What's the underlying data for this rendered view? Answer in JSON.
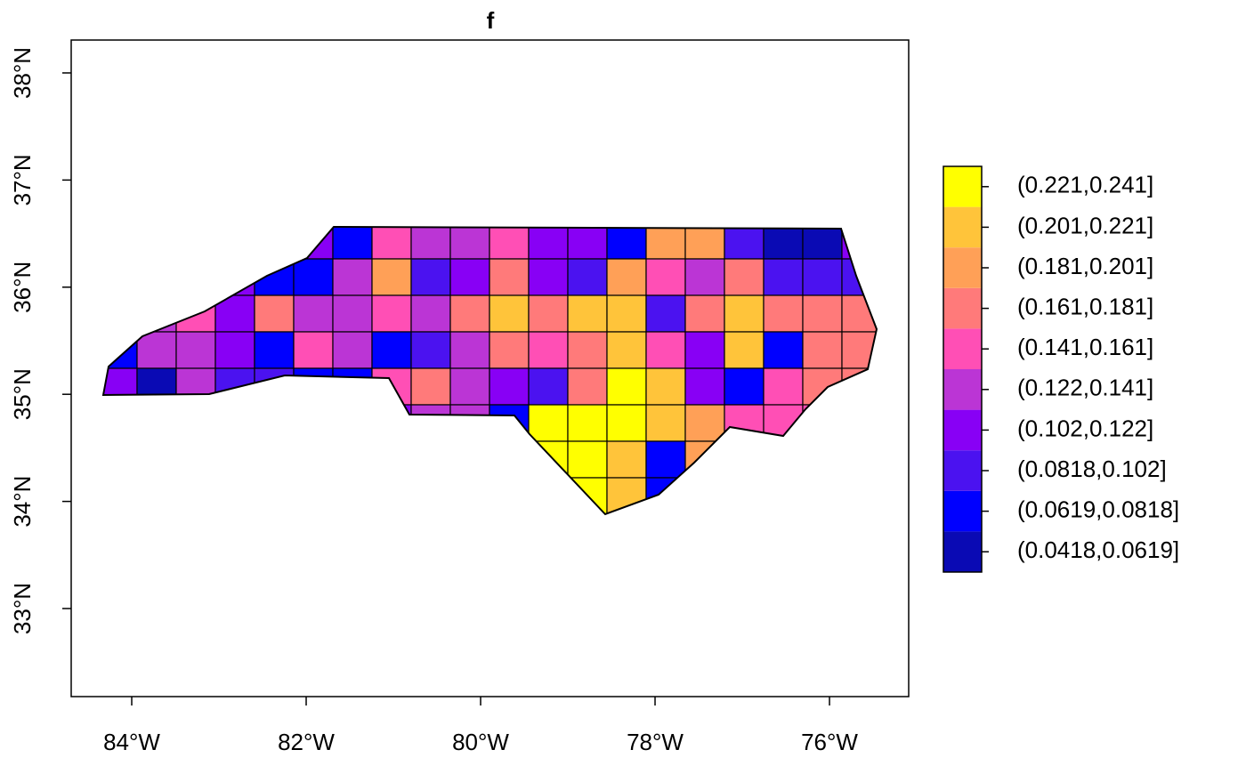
{
  "chart_data": {
    "type": "choropleth",
    "title": "f",
    "xlim": [
      -84.694,
      -75.092
    ],
    "ylim": [
      32.178,
      38.307
    ],
    "xticks": [
      {
        "value": -84,
        "label": "84°W"
      },
      {
        "value": -82,
        "label": "82°W"
      },
      {
        "value": -80,
        "label": "80°W"
      },
      {
        "value": -78,
        "label": "78°W"
      },
      {
        "value": -76,
        "label": "76°W"
      }
    ],
    "yticks": [
      {
        "value": 33,
        "label": "33°N"
      },
      {
        "value": 34,
        "label": "34°N"
      },
      {
        "value": 35,
        "label": "35°N"
      },
      {
        "value": 36,
        "label": "36°N"
      },
      {
        "value": 37,
        "label": "37°N"
      },
      {
        "value": 38,
        "label": "38°N"
      }
    ],
    "legend": {
      "labels": [
        "(0.0418,0.0619]",
        "(0.0619,0.0818]",
        "(0.0818,0.102]",
        "(0.102,0.122]",
        "(0.122,0.141]",
        "(0.141,0.161]",
        "(0.161,0.181]",
        "(0.181,0.201]",
        "(0.201,0.221]",
        "(0.221,0.241]"
      ],
      "colors": [
        "#0A0AB4",
        "#0000FF",
        "#4B12F0",
        "#8800F5",
        "#BB35D5",
        "#FF4FB5",
        "#FF7A7A",
        "#FFA057",
        "#FFC43A",
        "#FFFF00"
      ]
    }
  }
}
